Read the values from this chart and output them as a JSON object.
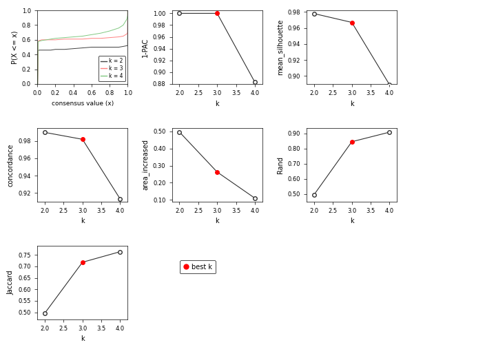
{
  "ecdf": {
    "k2": {
      "x": [
        0.0,
        0.005,
        0.01,
        0.02,
        0.05,
        0.1,
        0.15,
        0.2,
        0.3,
        0.4,
        0.5,
        0.6,
        0.7,
        0.8,
        0.9,
        0.95,
        0.99,
        0.999,
        1.0
      ],
      "y": [
        0.0,
        0.0,
        0.45,
        0.46,
        0.46,
        0.46,
        0.46,
        0.47,
        0.47,
        0.48,
        0.49,
        0.5,
        0.5,
        0.5,
        0.5,
        0.51,
        0.52,
        0.52,
        1.0
      ]
    },
    "k3": {
      "x": [
        0.0,
        0.005,
        0.01,
        0.02,
        0.05,
        0.1,
        0.15,
        0.2,
        0.3,
        0.4,
        0.5,
        0.6,
        0.7,
        0.8,
        0.9,
        0.95,
        0.99,
        0.999,
        1.0
      ],
      "y": [
        0.0,
        0.0,
        0.58,
        0.59,
        0.6,
        0.6,
        0.6,
        0.6,
        0.61,
        0.61,
        0.61,
        0.62,
        0.62,
        0.63,
        0.64,
        0.65,
        0.68,
        0.7,
        1.0
      ]
    },
    "k4": {
      "x": [
        0.0,
        0.005,
        0.01,
        0.02,
        0.05,
        0.1,
        0.15,
        0.2,
        0.3,
        0.4,
        0.5,
        0.6,
        0.7,
        0.8,
        0.9,
        0.95,
        0.99,
        0.999,
        1.0
      ],
      "y": [
        0.0,
        0.0,
        0.57,
        0.58,
        0.59,
        0.6,
        0.61,
        0.62,
        0.63,
        0.64,
        0.65,
        0.67,
        0.69,
        0.72,
        0.76,
        0.8,
        0.88,
        0.93,
        1.0
      ]
    },
    "colors": {
      "k2": "#404040",
      "k3": "#ff8080",
      "k4": "#80c880"
    },
    "xlabel": "consensus value (x)",
    "ylabel": "P(X <= x)"
  },
  "pac": {
    "k": [
      2,
      3,
      4
    ],
    "y": [
      1.0,
      1.0,
      0.883
    ],
    "best_k": 3,
    "ylabel": "1-PAC",
    "xlabel": "k",
    "ylim": [
      0.88,
      1.005
    ],
    "yticks": [
      0.88,
      0.9,
      0.92,
      0.94,
      0.96,
      0.98,
      1.0
    ]
  },
  "silhouette": {
    "k": [
      2,
      3,
      4
    ],
    "y": [
      0.978,
      0.967,
      0.889
    ],
    "best_k": 3,
    "ylabel": "mean_silhouette",
    "xlabel": "k",
    "ylim": [
      0.89,
      0.982
    ],
    "yticks": [
      0.9,
      0.92,
      0.94,
      0.96,
      0.98
    ]
  },
  "concordance": {
    "k": [
      2,
      3,
      4
    ],
    "y": [
      0.99,
      0.982,
      0.913
    ],
    "best_k": 3,
    "ylabel": "concordance",
    "xlabel": "k",
    "ylim": [
      0.91,
      0.995
    ],
    "yticks": [
      0.92,
      0.94,
      0.96,
      0.98
    ]
  },
  "area_increased": {
    "k": [
      2,
      3,
      4
    ],
    "y": [
      0.497,
      0.263,
      0.11
    ],
    "best_k": 3,
    "ylabel": "area_increased",
    "xlabel": "k",
    "ylim": [
      0.09,
      0.52
    ],
    "yticks": [
      0.1,
      0.2,
      0.3,
      0.4,
      0.5
    ]
  },
  "rand": {
    "k": [
      2,
      3,
      4
    ],
    "y": [
      0.496,
      0.845,
      0.908
    ],
    "best_k": 3,
    "ylabel": "Rand",
    "xlabel": "k",
    "ylim": [
      0.45,
      0.935
    ],
    "yticks": [
      0.5,
      0.6,
      0.7,
      0.8,
      0.9
    ]
  },
  "jaccard": {
    "k": [
      2,
      3,
      4
    ],
    "y": [
      0.496,
      0.718,
      0.764
    ],
    "best_k": 3,
    "ylabel": "Jaccard",
    "xlabel": "k",
    "ylim": [
      0.47,
      0.79
    ],
    "yticks": [
      0.5,
      0.55,
      0.6,
      0.65,
      0.7,
      0.75
    ]
  },
  "line_color": "#303030",
  "open_marker_fc": "white",
  "open_marker_ec": "#303030",
  "best_marker_color": "red",
  "marker_size": 4
}
